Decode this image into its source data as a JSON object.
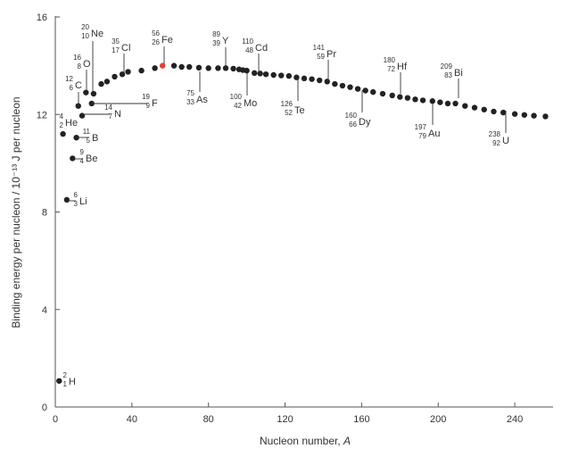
{
  "chart_data": {
    "type": "scatter",
    "xlabel_text": "Nucleon number, ",
    "xlabel_var": "A",
    "ylabel": "Binding energy per nucleon / 10⁻¹³ J per nucleon",
    "xlim": [
      0,
      260
    ],
    "ylim": [
      0,
      16
    ],
    "xticks": [
      0,
      40,
      80,
      120,
      160,
      200,
      240
    ],
    "yticks": [
      0,
      4,
      8,
      12,
      16
    ],
    "grid": false,
    "colors": {
      "point": "#222222",
      "highlight": "#e8412f",
      "axis": "#555555"
    },
    "highlight_x": 56,
    "points": [
      [
        2,
        1.07
      ],
      [
        4,
        11.2
      ],
      [
        6,
        8.5
      ],
      [
        9,
        10.2
      ],
      [
        11,
        11.05
      ],
      [
        12,
        12.35
      ],
      [
        14,
        11.95
      ],
      [
        16,
        12.9
      ],
      [
        19,
        12.45
      ],
      [
        20,
        12.85
      ],
      [
        24,
        13.25
      ],
      [
        27,
        13.35
      ],
      [
        31,
        13.55
      ],
      [
        35,
        13.65
      ],
      [
        38,
        13.75
      ],
      [
        45,
        13.8
      ],
      [
        52,
        13.9
      ],
      [
        56,
        14.0
      ],
      [
        62,
        14.0
      ],
      [
        66,
        13.95
      ],
      [
        70,
        13.95
      ],
      [
        75,
        13.92
      ],
      [
        80,
        13.9
      ],
      [
        85,
        13.9
      ],
      [
        89,
        13.9
      ],
      [
        93,
        13.88
      ],
      [
        96,
        13.85
      ],
      [
        98,
        13.82
      ],
      [
        100,
        13.8
      ],
      [
        104,
        13.7
      ],
      [
        107,
        13.68
      ],
      [
        110,
        13.65
      ],
      [
        114,
        13.62
      ],
      [
        118,
        13.6
      ],
      [
        122,
        13.58
      ],
      [
        126,
        13.52
      ],
      [
        130,
        13.48
      ],
      [
        134,
        13.45
      ],
      [
        138,
        13.4
      ],
      [
        142,
        13.35
      ],
      [
        146,
        13.25
      ],
      [
        150,
        13.18
      ],
      [
        154,
        13.12
      ],
      [
        158,
        13.05
      ],
      [
        162,
        12.98
      ],
      [
        166,
        12.92
      ],
      [
        171,
        12.85
      ],
      [
        176,
        12.78
      ],
      [
        180,
        12.72
      ],
      [
        184,
        12.68
      ],
      [
        188,
        12.62
      ],
      [
        192,
        12.58
      ],
      [
        197,
        12.55
      ],
      [
        201,
        12.5
      ],
      [
        205,
        12.45
      ],
      [
        209,
        12.45
      ],
      [
        214,
        12.35
      ],
      [
        219,
        12.28
      ],
      [
        224,
        12.2
      ],
      [
        229,
        12.12
      ],
      [
        234,
        12.08
      ],
      [
        240,
        12.02
      ],
      [
        245,
        11.98
      ],
      [
        250,
        11.95
      ],
      [
        256,
        11.92
      ]
    ],
    "annotations": [
      {
        "mass": "2",
        "atomic": "1",
        "symbol": "H",
        "x": 2,
        "y": 1.07
      },
      {
        "mass": "4",
        "atomic": "2",
        "symbol": "He",
        "x": 4,
        "y": 11.2
      },
      {
        "mass": "6",
        "atomic": "3",
        "symbol": "Li",
        "x": 6,
        "y": 8.5
      },
      {
        "mass": "9",
        "atomic": "4",
        "symbol": "Be",
        "x": 9,
        "y": 10.2
      },
      {
        "mass": "11",
        "atomic": "5",
        "symbol": "B",
        "x": 11,
        "y": 11.05
      },
      {
        "mass": "12",
        "atomic": "6",
        "symbol": "C",
        "x": 12,
        "y": 12.35
      },
      {
        "mass": "14",
        "atomic": "7",
        "symbol": "N",
        "x": 14,
        "y": 11.95
      },
      {
        "mass": "16",
        "atomic": "8",
        "symbol": "O",
        "x": 16,
        "y": 12.9
      },
      {
        "mass": "19",
        "atomic": "9",
        "symbol": "F",
        "x": 19,
        "y": 12.45
      },
      {
        "mass": "20",
        "atomic": "10",
        "symbol": "Ne",
        "x": 20,
        "y": 12.85
      },
      {
        "mass": "35",
        "atomic": "17",
        "symbol": "Cl",
        "x": 35,
        "y": 13.65
      },
      {
        "mass": "56",
        "atomic": "26",
        "symbol": "Fe",
        "x": 56,
        "y": 14.0
      },
      {
        "mass": "75",
        "atomic": "33",
        "symbol": "As",
        "x": 75,
        "y": 13.92
      },
      {
        "mass": "89",
        "atomic": "39",
        "symbol": "Y",
        "x": 89,
        "y": 13.9
      },
      {
        "mass": "100",
        "atomic": "42",
        "symbol": "Mo",
        "x": 100,
        "y": 13.8
      },
      {
        "mass": "110",
        "atomic": "48",
        "symbol": "Cd",
        "x": 110,
        "y": 13.65
      },
      {
        "mass": "126",
        "atomic": "52",
        "symbol": "Te",
        "x": 126,
        "y": 13.52
      },
      {
        "mass": "141",
        "atomic": "59",
        "symbol": "Pr",
        "x": 142,
        "y": 13.35
      },
      {
        "mass": "160",
        "atomic": "66",
        "symbol": "Dy",
        "x": 160,
        "y": 13.02
      },
      {
        "mass": "180",
        "atomic": "72",
        "symbol": "Hf",
        "x": 180,
        "y": 12.72
      },
      {
        "mass": "197",
        "atomic": "79",
        "symbol": "Au",
        "x": 197,
        "y": 12.55
      },
      {
        "mass": "209",
        "atomic": "83",
        "symbol": "Bi",
        "x": 209,
        "y": 12.45
      },
      {
        "mass": "238",
        "atomic": "92",
        "symbol": "U",
        "x": 236,
        "y": 12.08
      }
    ]
  }
}
